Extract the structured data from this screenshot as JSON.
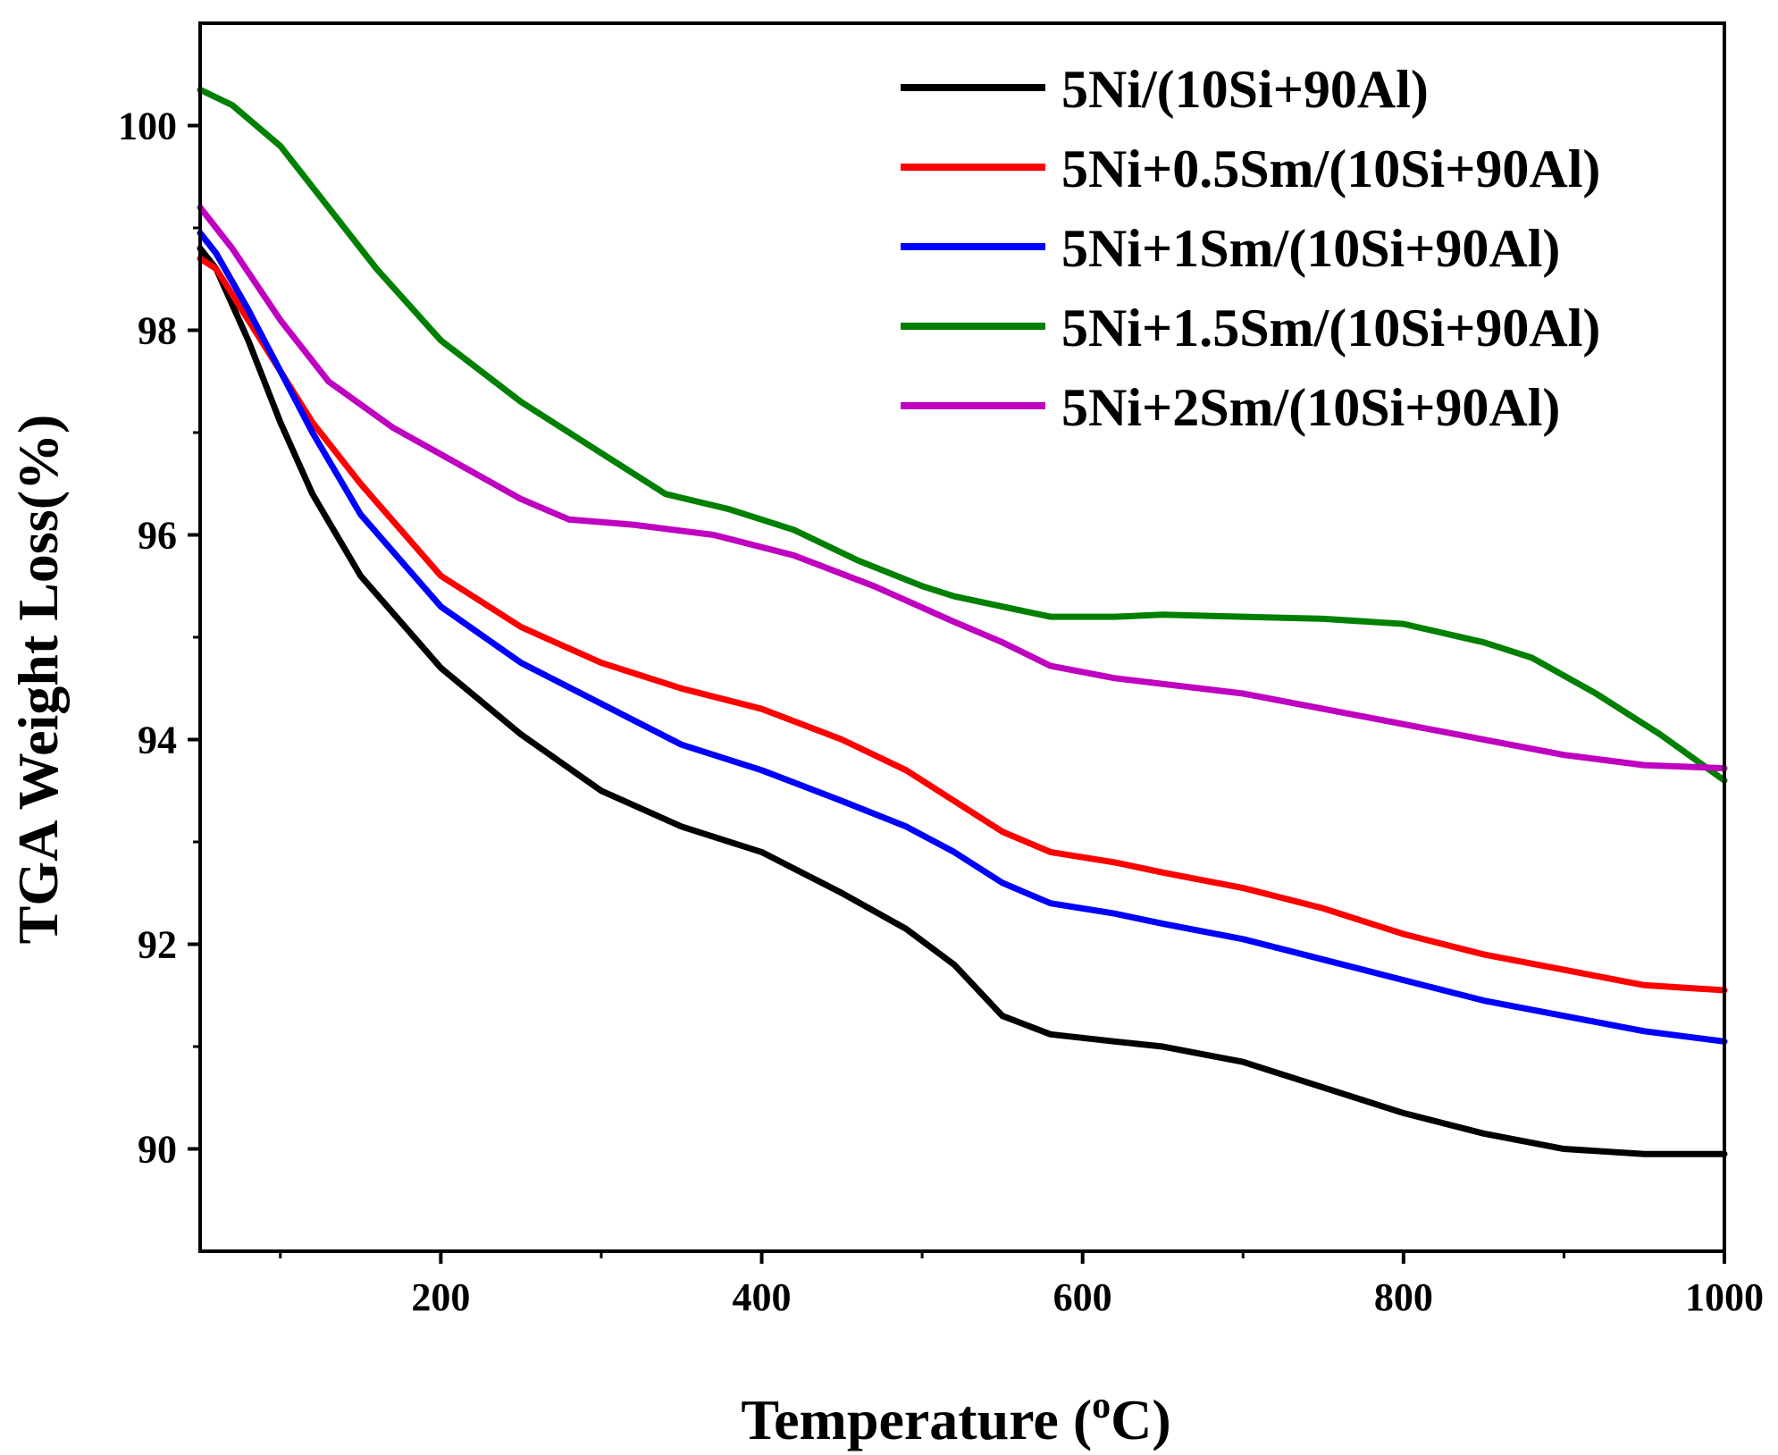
{
  "chart_data": {
    "type": "line",
    "title": "",
    "xlabel": "Temperature (",
    "xlabel_sup": "o",
    "xlabel_unit": "C)",
    "ylabel": "TGA Weight Loss(%)",
    "xlim": [
      50,
      1000
    ],
    "ylim": [
      89,
      101
    ],
    "xticks": [
      200,
      400,
      600,
      800,
      1000
    ],
    "xminor": [
      100,
      300,
      500,
      700,
      900
    ],
    "yticks": [
      90,
      92,
      94,
      96,
      98,
      100
    ],
    "yminor": [
      91,
      93,
      95,
      97,
      99
    ],
    "legend_position": "top-right",
    "series": [
      {
        "name": "5Ni/(10Si+90Al)",
        "color": "#000000",
        "points": [
          [
            50,
            98.8
          ],
          [
            60,
            98.6
          ],
          [
            80,
            97.9
          ],
          [
            100,
            97.1
          ],
          [
            120,
            96.4
          ],
          [
            150,
            95.6
          ],
          [
            200,
            94.7
          ],
          [
            250,
            94.05
          ],
          [
            300,
            93.5
          ],
          [
            350,
            93.15
          ],
          [
            400,
            92.9
          ],
          [
            450,
            92.5
          ],
          [
            490,
            92.15
          ],
          [
            520,
            91.8
          ],
          [
            550,
            91.3
          ],
          [
            580,
            91.12
          ],
          [
            620,
            91.05
          ],
          [
            650,
            91.0
          ],
          [
            700,
            90.85
          ],
          [
            750,
            90.6
          ],
          [
            800,
            90.35
          ],
          [
            850,
            90.15
          ],
          [
            900,
            90.0
          ],
          [
            950,
            89.95
          ],
          [
            1000,
            89.95
          ]
        ]
      },
      {
        "name": "5Ni+0.5Sm/(10Si+90Al)",
        "color": "#ff0000",
        "points": [
          [
            50,
            98.7
          ],
          [
            60,
            98.6
          ],
          [
            80,
            98.1
          ],
          [
            100,
            97.6
          ],
          [
            120,
            97.1
          ],
          [
            150,
            96.5
          ],
          [
            200,
            95.6
          ],
          [
            250,
            95.1
          ],
          [
            300,
            94.75
          ],
          [
            350,
            94.5
          ],
          [
            400,
            94.3
          ],
          [
            450,
            94.0
          ],
          [
            490,
            93.7
          ],
          [
            520,
            93.4
          ],
          [
            550,
            93.1
          ],
          [
            580,
            92.9
          ],
          [
            620,
            92.8
          ],
          [
            650,
            92.7
          ],
          [
            700,
            92.55
          ],
          [
            750,
            92.35
          ],
          [
            800,
            92.1
          ],
          [
            850,
            91.9
          ],
          [
            900,
            91.75
          ],
          [
            950,
            91.6
          ],
          [
            1000,
            91.55
          ]
        ]
      },
      {
        "name": "5Ni+1Sm/(10Si+90Al)",
        "color": "#0000ff",
        "points": [
          [
            50,
            98.95
          ],
          [
            60,
            98.75
          ],
          [
            80,
            98.2
          ],
          [
            100,
            97.6
          ],
          [
            120,
            97.0
          ],
          [
            150,
            96.2
          ],
          [
            200,
            95.3
          ],
          [
            250,
            94.75
          ],
          [
            300,
            94.35
          ],
          [
            350,
            93.95
          ],
          [
            400,
            93.7
          ],
          [
            450,
            93.4
          ],
          [
            490,
            93.15
          ],
          [
            520,
            92.9
          ],
          [
            550,
            92.6
          ],
          [
            580,
            92.4
          ],
          [
            620,
            92.3
          ],
          [
            650,
            92.2
          ],
          [
            700,
            92.05
          ],
          [
            750,
            91.85
          ],
          [
            800,
            91.65
          ],
          [
            850,
            91.45
          ],
          [
            900,
            91.3
          ],
          [
            950,
            91.15
          ],
          [
            1000,
            91.05
          ]
        ]
      },
      {
        "name": "5Ni+1.5Sm/(10Si+90Al)",
        "color": "#008000",
        "points": [
          [
            50,
            100.35
          ],
          [
            70,
            100.2
          ],
          [
            100,
            99.8
          ],
          [
            130,
            99.2
          ],
          [
            160,
            98.6
          ],
          [
            200,
            97.9
          ],
          [
            250,
            97.3
          ],
          [
            300,
            96.8
          ],
          [
            340,
            96.4
          ],
          [
            380,
            96.25
          ],
          [
            420,
            96.05
          ],
          [
            460,
            95.75
          ],
          [
            500,
            95.5
          ],
          [
            520,
            95.4
          ],
          [
            550,
            95.3
          ],
          [
            580,
            95.2
          ],
          [
            620,
            95.2
          ],
          [
            650,
            95.22
          ],
          [
            700,
            95.2
          ],
          [
            750,
            95.18
          ],
          [
            800,
            95.13
          ],
          [
            850,
            94.95
          ],
          [
            880,
            94.8
          ],
          [
            920,
            94.45
          ],
          [
            960,
            94.05
          ],
          [
            1000,
            93.6
          ]
        ]
      },
      {
        "name": "5Ni+2Sm/(10Si+90Al)",
        "color": "#c000c0",
        "points": [
          [
            50,
            99.2
          ],
          [
            70,
            98.8
          ],
          [
            100,
            98.1
          ],
          [
            130,
            97.5
          ],
          [
            170,
            97.05
          ],
          [
            210,
            96.7
          ],
          [
            250,
            96.35
          ],
          [
            280,
            96.15
          ],
          [
            320,
            96.1
          ],
          [
            370,
            96.0
          ],
          [
            420,
            95.8
          ],
          [
            470,
            95.5
          ],
          [
            520,
            95.15
          ],
          [
            550,
            94.95
          ],
          [
            580,
            94.72
          ],
          [
            620,
            94.6
          ],
          [
            700,
            94.45
          ],
          [
            800,
            94.15
          ],
          [
            900,
            93.85
          ],
          [
            950,
            93.75
          ],
          [
            1000,
            93.72
          ]
        ]
      }
    ]
  }
}
